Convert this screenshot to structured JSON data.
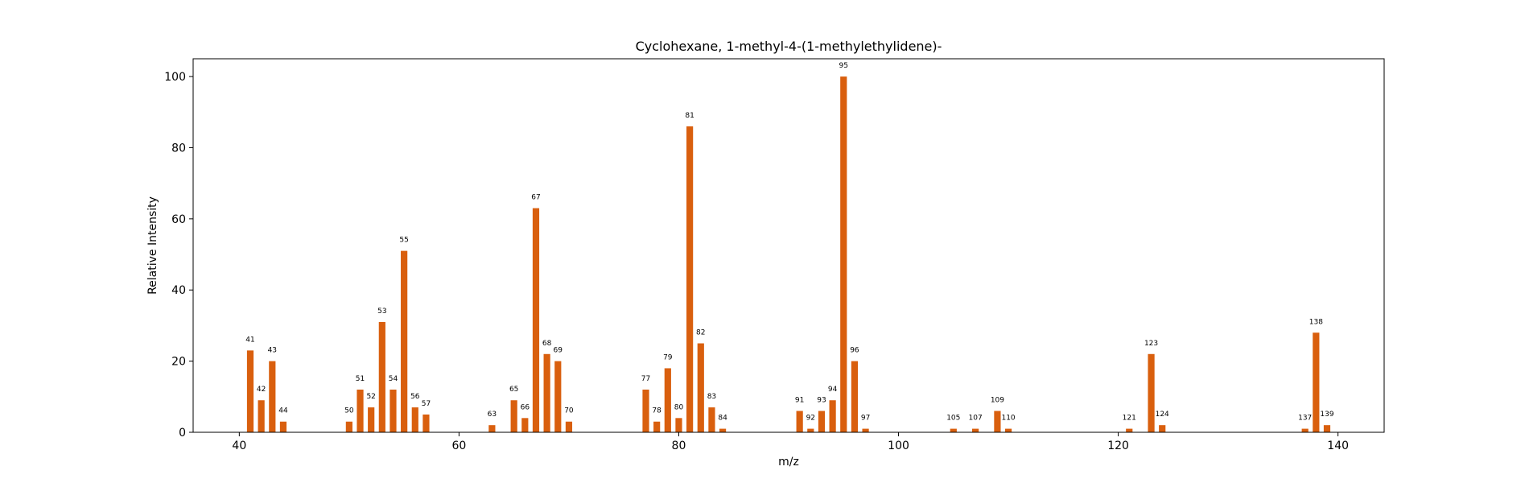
{
  "chart_data": {
    "type": "bar",
    "title": "Cyclohexane, 1-methyl-4-(1-methylethylidene)-",
    "xlabel": "m/z",
    "ylabel": "Relative Intensity",
    "xlim": [
      35.8,
      144.2
    ],
    "ylim": [
      0,
      105
    ],
    "xticks": [
      40,
      60,
      80,
      100,
      120,
      140
    ],
    "yticks": [
      0,
      20,
      40,
      60,
      80,
      100
    ],
    "grid": false,
    "bar_color": "#d95f0e",
    "x": [
      41,
      42,
      43,
      44,
      50,
      51,
      52,
      53,
      54,
      55,
      56,
      57,
      63,
      65,
      66,
      67,
      68,
      69,
      70,
      77,
      78,
      79,
      80,
      81,
      82,
      83,
      84,
      91,
      92,
      93,
      94,
      95,
      96,
      97,
      105,
      107,
      109,
      110,
      121,
      123,
      124,
      137,
      138,
      139
    ],
    "values": [
      23,
      9,
      20,
      3,
      3,
      12,
      7,
      31,
      12,
      51,
      7,
      5,
      2,
      9,
      4,
      63,
      22,
      20,
      3,
      12,
      3,
      18,
      4,
      86,
      25,
      7,
      1,
      6,
      1,
      6,
      9,
      100,
      20,
      1,
      1,
      1,
      6,
      1,
      1,
      22,
      2,
      1,
      28,
      2
    ],
    "labels": [
      "41",
      "42",
      "43",
      "44",
      "50",
      "51",
      "52",
      "53",
      "54",
      "55",
      "56",
      "57",
      "63",
      "65",
      "66",
      "67",
      "68",
      "69",
      "70",
      "77",
      "78",
      "79",
      "80",
      "81",
      "82",
      "83",
      "84",
      "91",
      "92",
      "93",
      "94",
      "95",
      "96",
      "97",
      "105",
      "107",
      "109",
      "110",
      "121",
      "123",
      "124",
      "137",
      "138",
      "139"
    ]
  }
}
